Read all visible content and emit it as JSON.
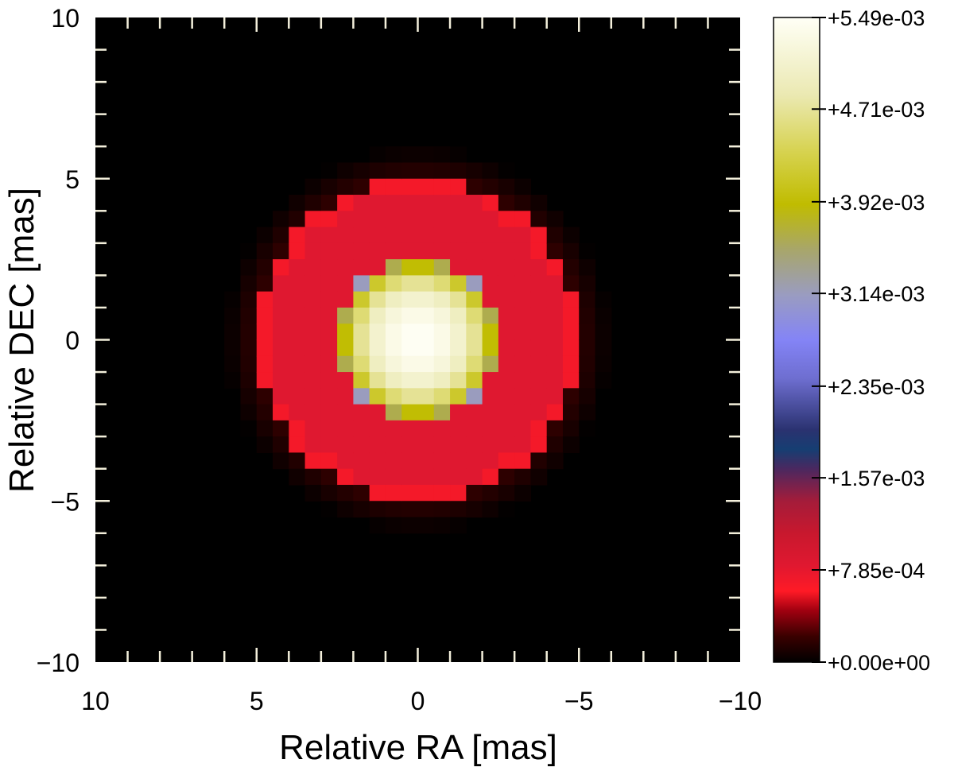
{
  "chart_data": {
    "type": "heatmap",
    "title": "",
    "xlabel": "Relative RA [mas]",
    "ylabel": "Relative DEC [mas]",
    "xlim": [
      10,
      -10
    ],
    "ylim": [
      -10,
      10
    ],
    "x_ticks": [
      10,
      5,
      0,
      -5,
      -10
    ],
    "y_ticks": [
      10,
      5,
      0,
      -5,
      -10
    ],
    "x_tick_labels": [
      "10",
      "5",
      "0",
      "−5",
      "−10"
    ],
    "y_tick_labels": [
      "10",
      "5",
      "0",
      "−5",
      "−10"
    ],
    "grid": false,
    "pixel_scale_mas": 0.5,
    "colorbar": {
      "min": 0.0,
      "max": 0.00549,
      "tick_labels": [
        "+0.00e+00",
        "+7.85e-04",
        "+1.57e-03",
        "+2.35e-03",
        "+3.14e-03",
        "+3.92e-03",
        "+4.71e-03",
        "+5.49e-03"
      ],
      "tick_values": [
        0.0,
        0.000785,
        0.00157,
        0.00235,
        0.00314,
        0.00392,
        0.00471,
        0.00549
      ],
      "colormap": [
        {
          "v": 0.0,
          "color": "#000000"
        },
        {
          "v": 0.04,
          "color": "#3a0000"
        },
        {
          "v": 0.08,
          "color": "#a00010"
        },
        {
          "v": 0.11,
          "color": "#ff1a26"
        },
        {
          "v": 0.15,
          "color": "#e01830"
        },
        {
          "v": 0.2,
          "color": "#c8182e"
        },
        {
          "v": 0.25,
          "color": "#a41c3a"
        },
        {
          "v": 0.3,
          "color": "#4a2860"
        },
        {
          "v": 0.33,
          "color": "#163e72"
        },
        {
          "v": 0.36,
          "color": "#2a3270"
        },
        {
          "v": 0.44,
          "color": "#6e6ed0"
        },
        {
          "v": 0.5,
          "color": "#8484f6"
        },
        {
          "v": 0.57,
          "color": "#9a9cc0"
        },
        {
          "v": 0.64,
          "color": "#a8a66a"
        },
        {
          "v": 0.71,
          "color": "#c0bc00"
        },
        {
          "v": 0.79,
          "color": "#d6d24e"
        },
        {
          "v": 0.88,
          "color": "#ebe9b2"
        },
        {
          "v": 1.0,
          "color": "#fffff6"
        }
      ]
    },
    "model": {
      "description_units": "mas",
      "star": {
        "radius": 2.5,
        "center_value": 0.00549,
        "limb_value": 0.00275
      },
      "ring": {
        "inner_radius": 2.5,
        "outer_radius": 5.0,
        "value": 0.00083
      },
      "ring_edge": {
        "value": 0.00068
      },
      "halo": {
        "outer_radius": 6.0,
        "value": 0.00018
      }
    }
  }
}
